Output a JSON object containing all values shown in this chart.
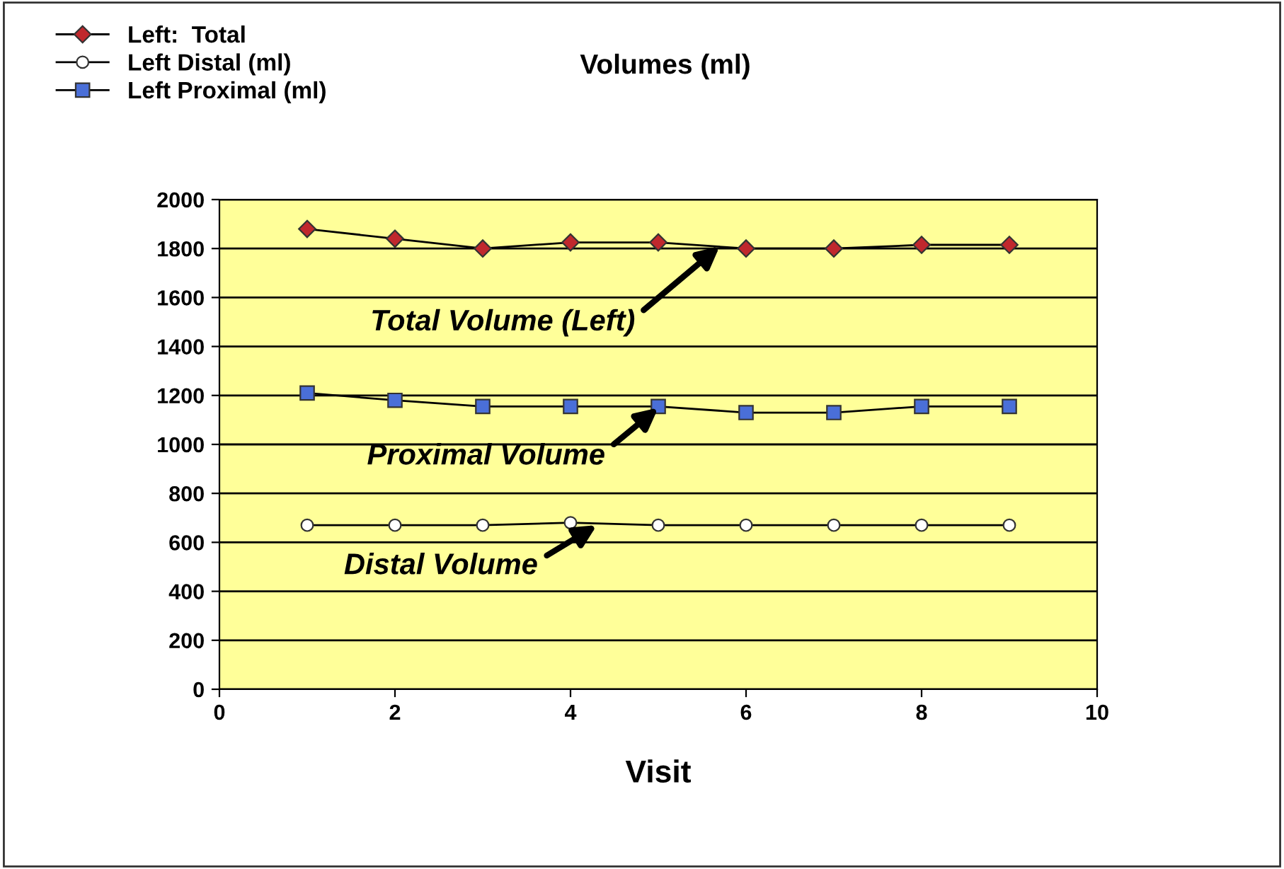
{
  "chart_data": {
    "type": "line",
    "title": "Volumes (ml)",
    "xlabel": "Visit",
    "x": [
      1,
      2,
      3,
      4,
      5,
      6,
      7,
      8,
      9
    ],
    "series": [
      {
        "name": "Left:  Total",
        "color": "#c0282d",
        "marker": "diamond",
        "values": [
          1880,
          1840,
          1800,
          1825,
          1825,
          1800,
          1800,
          1815,
          1815
        ]
      },
      {
        "name": "Left Distal (ml)",
        "color": "#ffffff",
        "marker": "circle",
        "values": [
          670,
          670,
          670,
          680,
          670,
          670,
          670,
          670,
          670
        ]
      },
      {
        "name": "Left Proximal (ml)",
        "color": "#4a6fd8",
        "marker": "square",
        "values": [
          1210,
          1180,
          1155,
          1155,
          1155,
          1130,
          1130,
          1155,
          1155
        ]
      }
    ],
    "annotations": [
      {
        "text": "Total Volume (Left)",
        "x": 5.7,
        "y": 1810
      },
      {
        "text": "Proximal Volume",
        "x": 5,
        "y": 1150
      },
      {
        "text": "Distal Volume",
        "x": 4.3,
        "y": 670
      }
    ],
    "xlim": [
      0,
      10
    ],
    "xticks": [
      0,
      2,
      4,
      6,
      8,
      10
    ],
    "ylim": [
      0,
      2000
    ],
    "yticks": [
      0,
      200,
      400,
      600,
      800,
      1000,
      1200,
      1400,
      1600,
      1800,
      2000
    ],
    "grid": "y",
    "legend": "top left"
  }
}
